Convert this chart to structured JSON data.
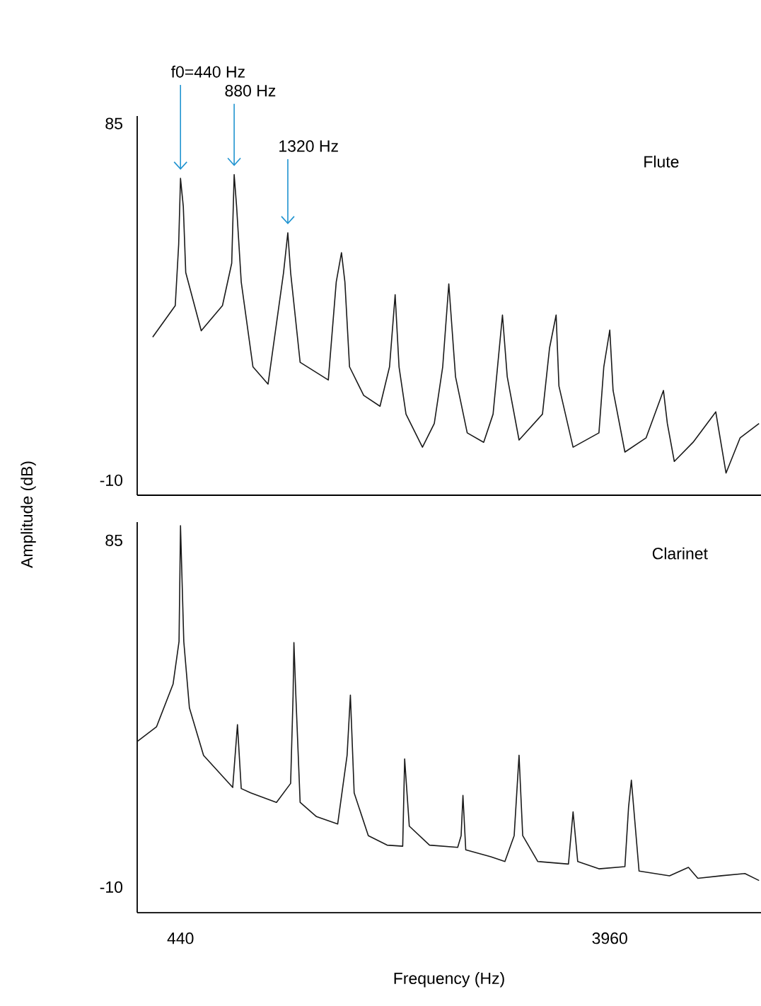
{
  "chart_data": [
    {
      "type": "line",
      "ylabel": "Amplitude (dB)",
      "xlim": [
        85,
        5200
      ],
      "ylim": [
        -14,
        87
      ],
      "yticks": [
        85,
        -10
      ],
      "tick_labels": "y",
      "annotations": [
        {
          "text": "f0=440 Hz",
          "x": 440,
          "y": 70.4
        },
        {
          "text": "880 Hz",
          "x": 880,
          "y": 71.4
        },
        {
          "text": "1320 Hz",
          "x": 1320,
          "y": 55.9
        }
      ],
      "series": [
        {
          "name": "Flute",
          "color": "#1a1a1a",
          "x": [
            212,
            397,
            425,
            440,
            463,
            483,
            610,
            784,
            860,
            880,
            900,
            938,
            1034,
            1158,
            1285,
            1320,
            1343,
            1421,
            1652,
            1717,
            1760,
            1788,
            1826,
            1942,
            2076,
            2154,
            2200,
            2232,
            2289,
            2424,
            2521,
            2590,
            2640,
            2695,
            2791,
            2926,
            3003,
            3080,
            3119,
            3216,
            3408,
            3466,
            3520,
            3543,
            3659,
            3871,
            3911,
            3960,
            3987,
            4084,
            4258,
            4400,
            4432,
            4489,
            4643,
            4829,
            4913,
            5029,
            5184
          ],
          "values": [
            28.1,
            36.5,
            52.8,
            70.4,
            62.9,
            45.3,
            29.8,
            36.5,
            47.8,
            71.4,
            62.9,
            42.8,
            20.2,
            15.6,
            45.3,
            55.9,
            45.3,
            21.4,
            16.7,
            42.8,
            50.6,
            42.8,
            20.2,
            12.6,
            9.7,
            20.2,
            39.4,
            20.2,
            7.6,
            -1.2,
            5.1,
            20.2,
            42.3,
            17.6,
            2.6,
            0.1,
            7.6,
            34,
            17.6,
            0.7,
            7.6,
            25.2,
            34,
            15.1,
            -1.2,
            2.6,
            20.2,
            30,
            13.9,
            -2.5,
            1.3,
            13.9,
            5.1,
            -5,
            0.1,
            8.2,
            -8.1,
            1.3,
            5.1
          ]
        }
      ]
    },
    {
      "type": "line",
      "xlabel": "Frequency (Hz)",
      "xlim": [
        85,
        5200
      ],
      "ylim": [
        -17,
        90
      ],
      "xticks": [
        440,
        3960
      ],
      "yticks": [
        85,
        -10
      ],
      "series": [
        {
          "name": "Clarinet",
          "color": "#1a1a1a",
          "x": [
            89,
            243,
            379,
            428,
            440,
            467,
            513,
            629,
            868,
            907,
            938,
            1016,
            1227,
            1343,
            1363,
            1370,
            1386,
            1421,
            1555,
            1729,
            1806,
            1833,
            1864,
            1980,
            2134,
            2262,
            2278,
            2316,
            2482,
            2713,
            2741,
            2756,
            2779,
            2984,
            3100,
            3176,
            3216,
            3246,
            3370,
            3621,
            3659,
            3697,
            3871,
            4084,
            4114,
            4137,
            4200,
            4450,
            4605,
            4682,
            4875,
            5068,
            5184
          ],
          "values": [
            30,
            33.9,
            45.6,
            57.3,
            89,
            57.3,
            39.1,
            26.1,
            17.3,
            34.5,
            17,
            15.8,
            13.2,
            18.4,
            42.3,
            57,
            42.3,
            13.2,
            9.3,
            7.3,
            26.1,
            42.6,
            15.8,
            4.1,
            1.5,
            1.2,
            25.1,
            6.7,
            1.5,
            0.9,
            4.1,
            15.1,
            0.2,
            -1.7,
            -3,
            4.1,
            26.1,
            4.1,
            -3,
            -3.7,
            10.6,
            -3,
            -5,
            -4.4,
            11.9,
            19.3,
            -5.6,
            -6.9,
            -4.6,
            -7.6,
            -6.9,
            -6.3,
            -8.2
          ]
        }
      ]
    }
  ]
}
